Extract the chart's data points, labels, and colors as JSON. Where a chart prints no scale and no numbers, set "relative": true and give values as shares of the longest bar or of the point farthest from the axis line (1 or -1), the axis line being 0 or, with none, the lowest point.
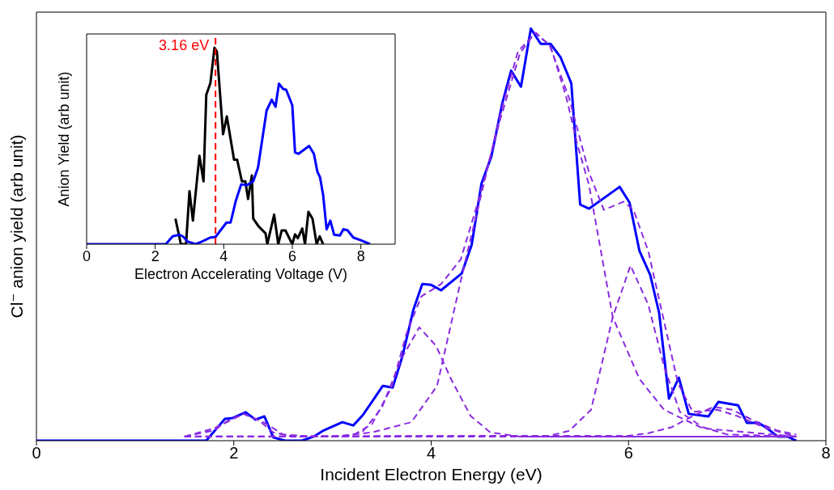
{
  "chart_data": [
    {
      "type": "line",
      "xlabel": "Incident Electron Energy (eV)",
      "ylabel": "Cl⁻ anion yield (arb unit)",
      "relative": true,
      "xlim": [
        0,
        8
      ],
      "xticks": [
        0,
        2,
        4,
        6,
        8
      ],
      "tick_labels": "x",
      "grid": false,
      "legend": false,
      "series": [
        {
          "color": "#0000ff",
          "line_style": "solid",
          "x": [
            0,
            1.72,
            1.91,
            1.99,
            2.12,
            2.22,
            2.31,
            2.4,
            2.52,
            2.69,
            2.81,
            2.91,
            3.1,
            3.21,
            3.31,
            3.41,
            3.51,
            3.61,
            3.71,
            3.82,
            3.91,
            4.0,
            4.1,
            4.31,
            4.41,
            4.51,
            4.61,
            4.72,
            4.81,
            4.91,
            5.01,
            5.11,
            5.21,
            5.31,
            5.42,
            5.51,
            5.6,
            5.91,
            6.01,
            6.11,
            6.22,
            6.31,
            6.41,
            6.51,
            6.61,
            6.81,
            6.91,
            7.11,
            7.2,
            7.32,
            7.41,
            7.51,
            7.61,
            7.7
          ],
          "values": [
            0,
            0,
            0.053,
            0.055,
            0.069,
            0.051,
            0.059,
            0.008,
            0,
            0,
            0.01,
            0.025,
            0.045,
            0.037,
            0.063,
            0.098,
            0.133,
            0.129,
            0.206,
            0.318,
            0.38,
            0.378,
            0.365,
            0.406,
            0.475,
            0.624,
            0.69,
            0.818,
            0.898,
            0.859,
            1.0,
            0.963,
            0.963,
            0.931,
            0.867,
            0.573,
            0.563,
            0.616,
            0.578,
            0.461,
            0.402,
            0.31,
            0.102,
            0.153,
            0.065,
            0.059,
            0.094,
            0.086,
            0.043,
            0.043,
            0.029,
            0.01,
            0.01,
            0
          ]
        },
        {
          "color": "#8a2be2",
          "line_style": "dashed",
          "x": [
            1.5,
            1.8,
            2.1,
            2.3,
            2.5,
            2.8,
            3.2,
            3.4,
            3.6,
            3.75,
            3.9,
            4.1,
            4.3,
            4.5,
            4.7,
            4.9,
            5.05,
            5.2,
            5.4,
            5.6,
            5.75,
            5.95,
            6.05,
            6.2,
            6.35,
            6.5,
            6.65,
            6.9,
            7.1,
            7.4,
            7.7
          ],
          "values": [
            0.01,
            0.03,
            0.065,
            0.045,
            0.015,
            0.01,
            0.012,
            0.04,
            0.13,
            0.26,
            0.35,
            0.38,
            0.44,
            0.6,
            0.78,
            0.94,
            0.99,
            0.96,
            0.83,
            0.65,
            0.56,
            0.58,
            0.56,
            0.46,
            0.3,
            0.14,
            0.07,
            0.075,
            0.06,
            0.03,
            0.01
          ]
        },
        {
          "color": "#8a2be2",
          "line_style": "dashed",
          "x": [
            1.5,
            1.8,
            1.95,
            2.1,
            2.25,
            2.4,
            2.6,
            7.7
          ],
          "values": [
            0.01,
            0.025,
            0.05,
            0.065,
            0.05,
            0.02,
            0.01,
            0.01
          ]
        },
        {
          "color": "#8a2be2",
          "line_style": "dashed",
          "x": [
            1.5,
            3.1,
            3.3,
            3.5,
            3.7,
            3.88,
            4.05,
            4.2,
            4.4,
            4.6,
            4.9,
            7.7
          ],
          "values": [
            0.01,
            0.01,
            0.02,
            0.08,
            0.2,
            0.275,
            0.23,
            0.15,
            0.06,
            0.02,
            0.01,
            0.01
          ]
        },
        {
          "color": "#8a2be2",
          "line_style": "dashed",
          "x": [
            1.5,
            3.0,
            3.4,
            3.8,
            4.06,
            4.33,
            4.55,
            4.72,
            4.88,
            5.06,
            5.21,
            5.37,
            5.48,
            5.6,
            5.84,
            6.11,
            6.36,
            6.75,
            7.7
          ],
          "values": [
            0.01,
            0.01,
            0.02,
            0.045,
            0.133,
            0.42,
            0.64,
            0.81,
            0.945,
            0.99,
            0.957,
            0.833,
            0.72,
            0.62,
            0.3,
            0.15,
            0.075,
            0.03,
            0.01
          ]
        },
        {
          "color": "#8a2be2",
          "line_style": "dashed",
          "x": [
            1.5,
            5.2,
            5.4,
            5.62,
            5.84,
            6.02,
            6.2,
            6.36,
            6.52,
            6.75,
            7.0,
            7.7
          ],
          "values": [
            0.01,
            0.012,
            0.024,
            0.075,
            0.3,
            0.425,
            0.33,
            0.18,
            0.07,
            0.033,
            0.015,
            0.01
          ]
        },
        {
          "color": "#8a2be2",
          "line_style": "dashed",
          "x": [
            1.5,
            6.0,
            6.2,
            6.44,
            6.65,
            6.86,
            7.05,
            7.3,
            7.5,
            7.7
          ],
          "values": [
            0.01,
            0.012,
            0.018,
            0.033,
            0.06,
            0.082,
            0.075,
            0.045,
            0.025,
            0.015
          ]
        }
      ]
    },
    {
      "type": "line",
      "xlabel": "Electron Accelerating Voltage (V)",
      "ylabel": "Anion Yield (arb unit)",
      "relative": true,
      "xlim": [
        0,
        9
      ],
      "xticks": [
        0,
        2,
        4,
        6,
        8
      ],
      "tick_labels": "x",
      "grid": false,
      "legend": false,
      "ref_lines": [
        {
          "axis": "x",
          "value": 3.76,
          "label": "3.16 eV",
          "color": "#ff0000",
          "line_style": "dashed"
        }
      ],
      "series": [
        {
          "color": "#000000",
          "line_style": "solid",
          "x": [
            2.59,
            2.75,
            2.9,
            3.0,
            3.1,
            3.29,
            3.41,
            3.49,
            3.61,
            3.73,
            3.8,
            3.98,
            4.09,
            4.3,
            4.39,
            4.53,
            4.63,
            4.71,
            4.82,
            4.86,
            5.02,
            5.22,
            5.27,
            5.47,
            5.59,
            5.69,
            5.8,
            6.0,
            6.08,
            6.16,
            6.29,
            6.37,
            6.47,
            6.59,
            6.71,
            6.8,
            6.9
          ],
          "values": [
            0.13,
            0,
            0,
            0.27,
            0.12,
            0.45,
            0.32,
            0.76,
            0.82,
            1.0,
            0.98,
            0.56,
            0.65,
            0.43,
            0.43,
            0.32,
            0.32,
            0.23,
            0.35,
            0.13,
            0.09,
            0.055,
            0,
            0.15,
            0,
            0.07,
            0.07,
            0,
            0.05,
            0.03,
            0.08,
            0,
            0.165,
            0.13,
            0,
            0.04,
            0
          ]
        },
        {
          "color": "#0000ff",
          "line_style": "solid",
          "x": [
            0,
            2.31,
            2.51,
            2.71,
            2.82,
            2.94,
            3.18,
            3.37,
            3.61,
            3.76,
            4.08,
            4.2,
            4.35,
            4.51,
            4.67,
            4.86,
            5.0,
            5.25,
            5.4,
            5.51,
            5.61,
            5.73,
            5.82,
            6.0,
            6.08,
            6.18,
            6.49,
            6.63,
            6.73,
            6.81,
            6.9,
            7.0,
            7.11,
            7.22,
            7.39,
            7.49,
            7.61,
            7.78,
            8.0,
            8.27
          ],
          "values": [
            0,
            0,
            0.04,
            0.048,
            0.038,
            0.014,
            0,
            0.014,
            0.034,
            0.037,
            0.11,
            0.11,
            0.22,
            0.305,
            0.3,
            0.32,
            0.39,
            0.68,
            0.735,
            0.7,
            0.817,
            0.79,
            0.786,
            0.707,
            0.467,
            0.46,
            0.5,
            0.46,
            0.37,
            0.34,
            0.25,
            0.076,
            0.12,
            0.048,
            0.044,
            0.076,
            0.071,
            0.034,
            0.02,
            0
          ]
        }
      ]
    }
  ]
}
